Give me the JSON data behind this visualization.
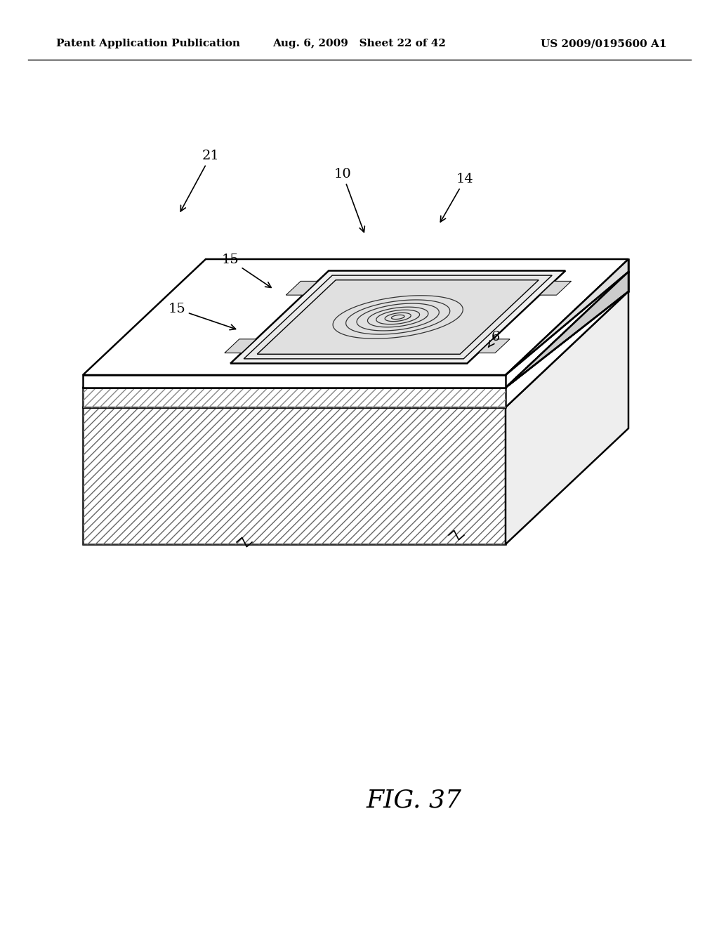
{
  "bg_color": "#ffffff",
  "header_left": "Patent Application Publication",
  "header_center": "Aug. 6, 2009   Sheet 22 of 42",
  "header_right": "US 2009/0195600 A1",
  "fig_label": "FIG. 37",
  "line_color": "#000000"
}
